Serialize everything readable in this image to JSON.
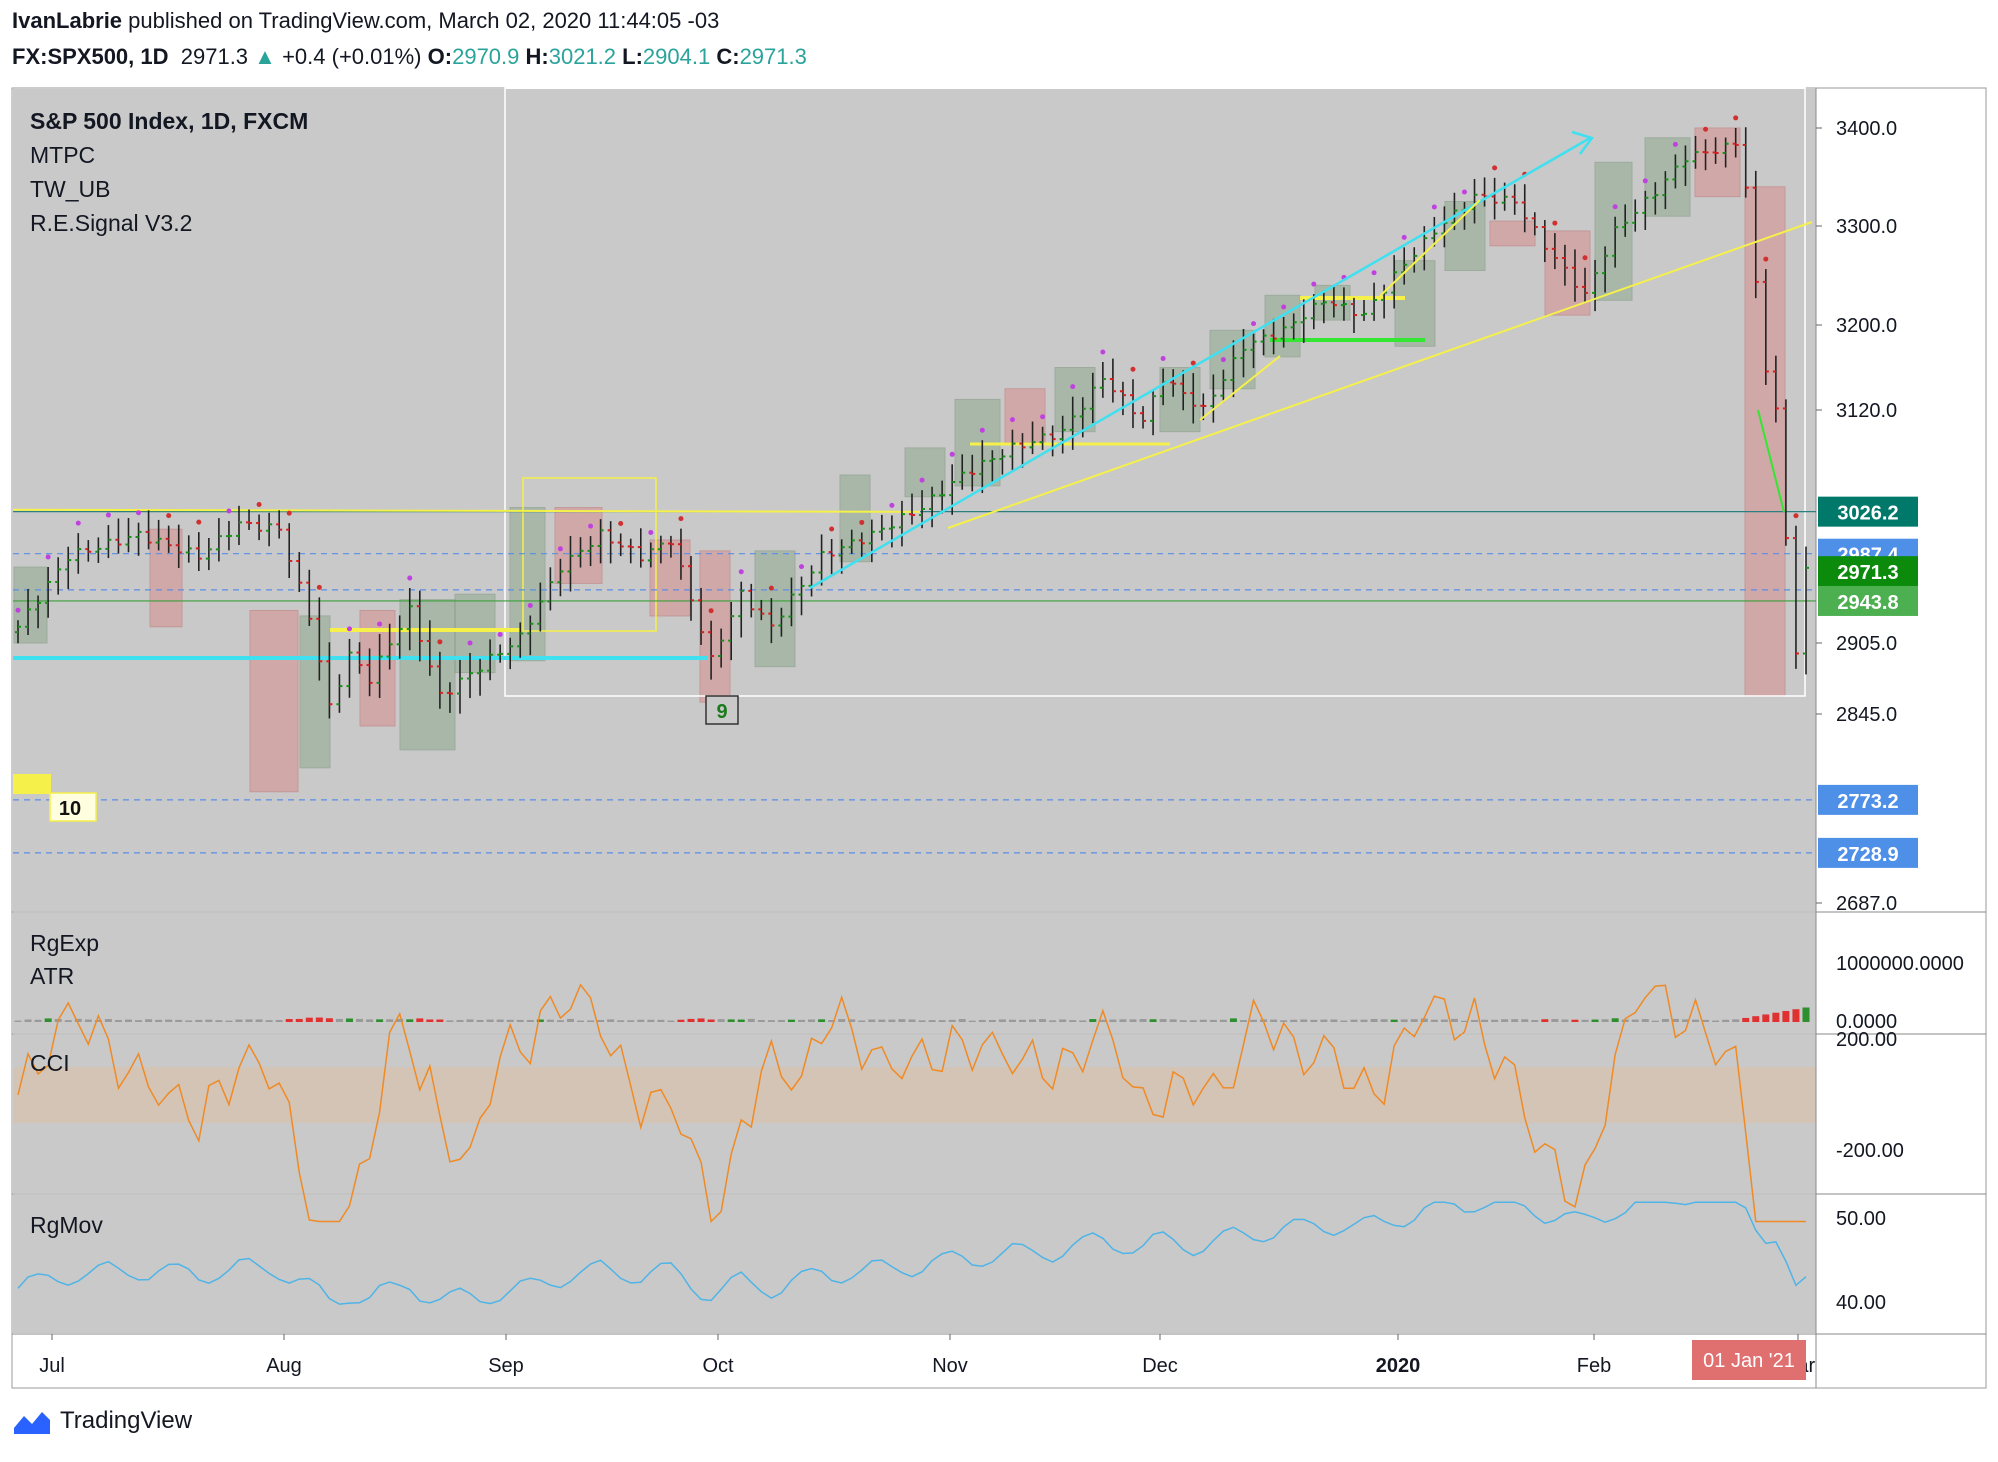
{
  "header": {
    "author": "IvanLabrie",
    "published_text": "published on TradingView.com, March 02, 2020 11:44:05 -03",
    "symbol": "FX:SPX500, 1D",
    "last": "2971.3",
    "change": "+0.4 (+0.01%)",
    "o_label": "O:",
    "o": "2970.9",
    "h_label": "H:",
    "h": "3021.2",
    "l_label": "L:",
    "l": "2904.1",
    "c_label": "C:",
    "c": "2971.3"
  },
  "legend": [
    "S&P 500 Index, 1D, FXCM",
    "MTPC",
    "TW_UB",
    "R.E.Signal V3.2"
  ],
  "panes": {
    "volume_title": "RgExp",
    "atr_title": "ATR",
    "cci_title": "CCI",
    "mov_title": "RgMov"
  },
  "price_labels": [
    {
      "text": "3026.2",
      "value": 3026.2,
      "color": "#00796b"
    },
    {
      "text": "2987.4",
      "value": 2987.4,
      "color": "#4e8fe8"
    },
    {
      "text": "2971.3",
      "value": 2971.3,
      "color": "#0c8a0c"
    },
    {
      "text": "2943.8",
      "value": 2943.8,
      "color": "#4caf50"
    },
    {
      "text": "2773.2",
      "value": 2773.2,
      "color": "#4e8fe8"
    },
    {
      "text": "2728.9",
      "value": 2728.9,
      "color": "#4e8fe8"
    }
  ],
  "markers": {
    "nine": "9",
    "ten": "10"
  },
  "date_badge": "01 Jan '21",
  "footer": {
    "brand": "TradingView"
  },
  "colors": {
    "bg": "#c9c9c9",
    "up": "#1b8f1b",
    "down": "#d32020",
    "cyan": "#3fe0f0",
    "yellow": "#f5f04a",
    "green": "#32e632",
    "orange": "#f08a24",
    "blue": "#4fb4e6"
  },
  "chart_data": {
    "type": "candlestick",
    "title": "S&P 500 Index, 1D, FXCM",
    "ylim": [
      2670,
      3430
    ],
    "y_ticks": [
      3400.0,
      3300.0,
      3200.0,
      3120.0,
      2905.0,
      2845.0,
      2687.0
    ],
    "x_tick_labels": [
      "Jul",
      "Aug",
      "Sep",
      "Oct",
      "Nov",
      "Dec",
      "2020",
      "Feb",
      "Mar"
    ],
    "anchors": [
      {
        "i": 0,
        "p": 2920
      },
      {
        "i": 5,
        "p": 2985
      },
      {
        "i": 12,
        "p": 3005
      },
      {
        "i": 18,
        "p": 2985
      },
      {
        "i": 22,
        "p": 3015
      },
      {
        "i": 26,
        "p": 3010
      },
      {
        "i": 29,
        "p": 2930
      },
      {
        "i": 31,
        "p": 2850
      },
      {
        "i": 33,
        "p": 2895
      },
      {
        "i": 35,
        "p": 2875
      },
      {
        "i": 39,
        "p": 2935
      },
      {
        "i": 42,
        "p": 2860
      },
      {
        "i": 46,
        "p": 2885
      },
      {
        "i": 50,
        "p": 2910
      },
      {
        "i": 54,
        "p": 2975
      },
      {
        "i": 58,
        "p": 3005
      },
      {
        "i": 62,
        "p": 2985
      },
      {
        "i": 65,
        "p": 3000
      },
      {
        "i": 69,
        "p": 2890
      },
      {
        "i": 72,
        "p": 2950
      },
      {
        "i": 75,
        "p": 2920
      },
      {
        "i": 80,
        "p": 2985
      },
      {
        "i": 85,
        "p": 3005
      },
      {
        "i": 90,
        "p": 3030
      },
      {
        "i": 94,
        "p": 3060
      },
      {
        "i": 99,
        "p": 3085
      },
      {
        "i": 104,
        "p": 3100
      },
      {
        "i": 108,
        "p": 3150
      },
      {
        "i": 112,
        "p": 3110
      },
      {
        "i": 114,
        "p": 3150
      },
      {
        "i": 118,
        "p": 3120
      },
      {
        "i": 122,
        "p": 3180
      },
      {
        "i": 126,
        "p": 3195
      },
      {
        "i": 130,
        "p": 3225
      },
      {
        "i": 134,
        "p": 3210
      },
      {
        "i": 137,
        "p": 3250
      },
      {
        "i": 141,
        "p": 3295
      },
      {
        "i": 145,
        "p": 3330
      },
      {
        "i": 149,
        "p": 3325
      },
      {
        "i": 152,
        "p": 3280
      },
      {
        "i": 156,
        "p": 3230
      },
      {
        "i": 159,
        "p": 3295
      },
      {
        "i": 163,
        "p": 3335
      },
      {
        "i": 166,
        "p": 3370
      },
      {
        "i": 170,
        "p": 3380
      },
      {
        "i": 171,
        "p": 3385
      },
      {
        "i": 172,
        "p": 3340
      },
      {
        "i": 173,
        "p": 3240
      },
      {
        "i": 174,
        "p": 3160
      },
      {
        "i": 175,
        "p": 3120
      },
      {
        "i": 176,
        "p": 3000
      },
      {
        "i": 177,
        "p": 2900
      },
      {
        "i": 178,
        "p": 2971
      }
    ]
  }
}
